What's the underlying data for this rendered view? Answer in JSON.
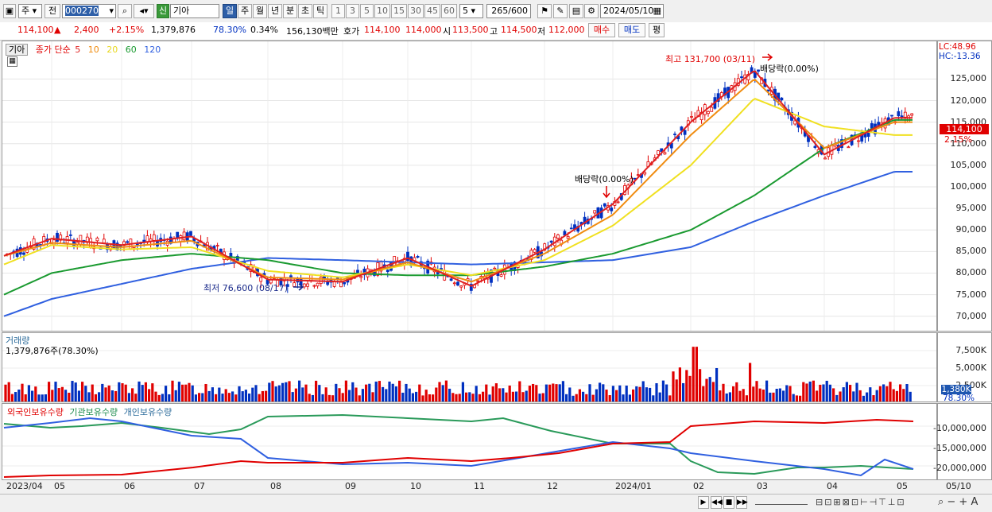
{
  "toolbar": {
    "market": "주",
    "prefix": "전",
    "code": "000270",
    "badge": "신",
    "name": "기아",
    "periods": [
      "일",
      "주",
      "월",
      "년",
      "분",
      "초",
      "틱"
    ],
    "active_period": "일",
    "nums": [
      "1",
      "3",
      "5",
      "10",
      "15",
      "30",
      "45",
      "60"
    ],
    "unit_value": "5",
    "count": "265",
    "total": "/600",
    "date": "2024/05/10"
  },
  "quote": {
    "price": "114,100",
    "up_arrow": "▲",
    "change": "2,400",
    "change_pct": "+2.15%",
    "volume": "1,379,876",
    "vol_ratio": "78.30%",
    "turnover": "0.34%",
    "amount": "156,130백만",
    "ask_label": "호가",
    "ask1": "114,100",
    "ask2": "114,000",
    "open_label": "시",
    "open": "113,500",
    "high_label": "고",
    "high": "114,500",
    "low_label": "저",
    "low": "112,000",
    "buy": "매수",
    "sell": "매도",
    "eval": "평"
  },
  "price_panel": {
    "stock_tab": "기아",
    "legend_prefix": "종가 단순",
    "ma_labels": [
      "5",
      "10",
      "20",
      "60",
      "120"
    ],
    "lc": "LC:48.96",
    "hc": "HC:-13.36",
    "current_price": "114,100",
    "current_pct": "2.15%",
    "high_note": "최고 131,700 (03/11)",
    "low_note": "최저 76,600 (08/17)",
    "div_note_1": "배당락(0.00%)",
    "div_note_2": "배당락(0.00%)",
    "yticks": [
      "125,000",
      "120,000",
      "115,000",
      "110,000",
      "105,000",
      "100,000",
      "95,000",
      "90,000",
      "85,000",
      "80,000",
      "75,000",
      "70,000"
    ]
  },
  "volume_panel": {
    "title": "거래량",
    "value": "1,379,876주(78.30%)",
    "yticks": [
      "7,500K",
      "5,000K",
      "2,500K"
    ],
    "current": "1,380K",
    "current_pct": "78.30%"
  },
  "holding_panel": {
    "labels": [
      "외국인보유수량",
      "기관보유수량",
      "개인보유수량"
    ],
    "yticks": [
      "-10,000,000",
      "-15,000,000",
      "-20,000,000"
    ]
  },
  "xaxis": [
    "2023/04",
    "05",
    "06",
    "07",
    "08",
    "09",
    "10",
    "11",
    "12",
    "2024/01",
    "02",
    "03",
    "04",
    "05"
  ],
  "xaxis_right": "05/10",
  "colors": {
    "up": "#e00000",
    "down": "#0030c0",
    "ma5": "#e02020",
    "ma10": "#f08c10",
    "ma20": "#f0e020",
    "ma60": "#1a9a30",
    "ma120": "#3060e0"
  },
  "chart_data": {
    "type": "line",
    "x": [
      "2023/04",
      "05",
      "06",
      "07",
      "08",
      "09",
      "10",
      "11",
      "12",
      "2024/01",
      "02",
      "03",
      "04",
      "05"
    ],
    "series": [
      {
        "name": "5",
        "values": [
          84000,
          88000,
          86500,
          88500,
          78500,
          78000,
          83500,
          77000,
          85500,
          96000,
          115000,
          127000,
          107500,
          116000
        ]
      },
      {
        "name": "10",
        "values": [
          84000,
          87000,
          86000,
          87500,
          79000,
          78500,
          82500,
          78000,
          84500,
          93500,
          112000,
          125000,
          109000,
          115000
        ]
      },
      {
        "name": "20",
        "values": [
          82000,
          86500,
          85500,
          86000,
          80500,
          79000,
          82000,
          79500,
          83000,
          91000,
          105000,
          120500,
          114000,
          112000
        ]
      },
      {
        "name": "60",
        "values": [
          75000,
          80000,
          83000,
          84500,
          83000,
          80000,
          79500,
          79500,
          81500,
          84500,
          90000,
          98000,
          109000,
          115500
        ]
      },
      {
        "name": "120",
        "values": [
          70000,
          74000,
          77500,
          81000,
          83500,
          83000,
          82500,
          82000,
          82500,
          83000,
          86000,
          92000,
          98000,
          103500
        ]
      }
    ],
    "ylim": [
      67000,
      133000
    ],
    "high": {
      "label": "최고",
      "value": 131700,
      "date": "03/11"
    },
    "low": {
      "label": "최저",
      "value": 76600,
      "date": "08/17"
    }
  }
}
